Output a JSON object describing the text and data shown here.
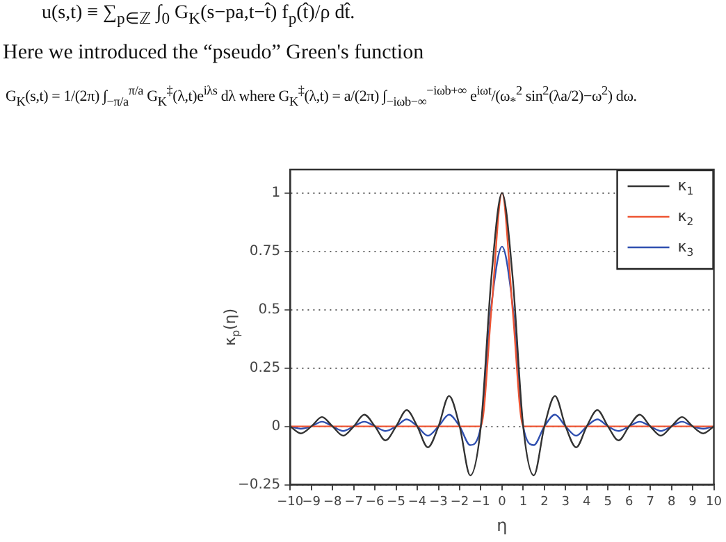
{
  "chart_data": {
    "type": "line",
    "xlabel": "η",
    "ylabel": "κ$_{p}$(η)",
    "annotations": [
      "u(s,t) ≡ ∑$_{p∈ℤ}$ ∫$_{0}$ G$_{K}$(s−pa,t−t̂) f$_{p}$(t̂)/ρ dt̂.",
      "Here we introduced the “pseudo” Green's function",
      "G$_{K}$(s,t) = 1/(2π) ∫$_{−π/a}$$^{π/a}$ G$_{K}$$^{‡}$(λ,t)e$^{iλs}$ dλ   where G$_{K}$$^{‡}$(λ,t) = a/(2π) ∫$_{−iωb−∞}$$^{−iωb+∞}$ e$^{iωt}$/(ω$_{*}$$^{2}$ sin$^{2}$(λa/2)−ω$^{2}$) dω."
    ],
    "x": [
      -10,
      -9.5,
      -9,
      -8.5,
      -8,
      -7.5,
      -7,
      -6.5,
      -6,
      -5.5,
      -5,
      -4.5,
      -4,
      -3.5,
      -3,
      -2.5,
      -2,
      -1.5,
      -1,
      -0.5,
      0,
      0.5,
      1,
      1.5,
      2,
      2.5,
      3,
      3.5,
      4,
      4.5,
      5,
      5.5,
      6,
      6.5,
      7,
      7.5,
      8,
      8.5,
      9,
      9.5,
      10
    ],
    "series": [
      {
        "name": "κ$_{1}$",
        "color": "#333333",
        "values": [
          0,
          -0.03,
          0,
          0.04,
          0,
          -0.04,
          0,
          0.05,
          0,
          -0.06,
          0,
          0.07,
          0,
          -0.09,
          0,
          0.13,
          0,
          -0.21,
          0,
          0.64,
          1,
          0.64,
          0,
          -0.21,
          0,
          0.13,
          0,
          -0.09,
          0,
          0.07,
          0,
          -0.06,
          0,
          0.05,
          0,
          -0.04,
          0,
          0.04,
          0,
          -0.03,
          0
        ]
      },
      {
        "name": "κ$_{2}$",
        "color": "#ee5533",
        "values": [
          0,
          0,
          0,
          0,
          0,
          0,
          0,
          0,
          0,
          0,
          0,
          0,
          0,
          0,
          0,
          0,
          0,
          0,
          0,
          0.5,
          1,
          0.5,
          0,
          0,
          0,
          0,
          0,
          0,
          0,
          0,
          0,
          0,
          0,
          0,
          0,
          0,
          0,
          0,
          0,
          0,
          0
        ]
      },
      {
        "name": "κ$_{3}$",
        "color": "#3050b0",
        "values": [
          0,
          -0.01,
          0,
          0.02,
          0,
          -0.02,
          0,
          0.02,
          0,
          -0.02,
          0,
          0.03,
          0,
          -0.04,
          0,
          0.05,
          0,
          -0.08,
          0,
          0.52,
          0.77,
          0.52,
          0,
          -0.08,
          0,
          0.05,
          0,
          -0.04,
          0,
          0.03,
          0,
          -0.02,
          0,
          0.02,
          0,
          -0.02,
          0,
          0.02,
          0,
          -0.01,
          0
        ]
      }
    ],
    "xlim": [
      -10,
      10
    ],
    "xticks": [
      -10,
      -9,
      -8,
      -7,
      -6,
      -5,
      -4,
      -3,
      -2,
      -1,
      0,
      1,
      2,
      3,
      4,
      5,
      6,
      7,
      8,
      9,
      10
    ],
    "ylim": [
      -0.25,
      1.1
    ],
    "yticks": [
      -0.25,
      0,
      0.25,
      0.5,
      0.75,
      1
    ],
    "grid": "y",
    "legend": "top right",
    "marker": "none",
    "line_style": "solid"
  }
}
